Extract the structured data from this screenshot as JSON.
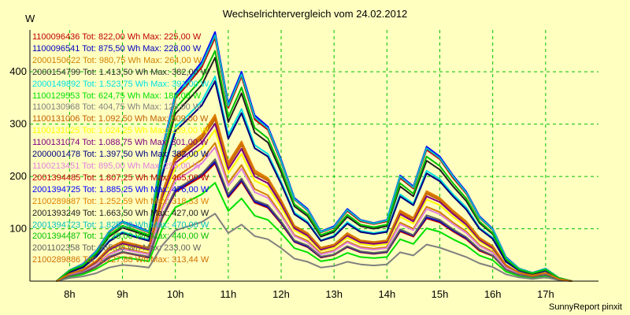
{
  "header": {
    "title": "Wechselrichtervergleich vom 24.02.2012",
    "unit": "W"
  },
  "footer": {
    "credit": "SunnyReport pinxit"
  },
  "chart_data": {
    "type": "line",
    "title": "Wechselrichtervergleich vom 24.02.2012",
    "ylabel": "W",
    "xlabel": "",
    "grid": true,
    "grid_style": "dashed",
    "grid_color": "#00c000",
    "background": "#ffffc0",
    "legend_position": "top-left",
    "xlim": [
      7.25,
      18.0
    ],
    "ylim": [
      0,
      480
    ],
    "x_ticks": [
      8,
      9,
      10,
      11,
      12,
      13,
      14,
      15,
      16,
      17
    ],
    "x_tick_labels": [
      "8h",
      "9h",
      "10h",
      "11h",
      "12h",
      "13h",
      "14h",
      "15h",
      "16h",
      "17h"
    ],
    "y_ticks": [
      100,
      200,
      300,
      400
    ],
    "y_tick_labels": [
      "100",
      "200",
      "300",
      "400"
    ],
    "x": [
      7.75,
      8.0,
      8.25,
      8.5,
      8.75,
      9.0,
      9.25,
      9.5,
      9.75,
      10.0,
      10.25,
      10.5,
      10.75,
      11.0,
      11.25,
      11.5,
      11.75,
      12.0,
      12.25,
      12.5,
      12.75,
      13.0,
      13.25,
      13.5,
      13.75,
      14.0,
      14.25,
      14.5,
      14.75,
      15.0,
      15.25,
      15.5,
      15.75,
      16.0,
      16.25,
      16.5,
      16.75,
      17.0,
      17.25,
      17.5
    ],
    "series": [
      {
        "name": "1100096436 Tot: 822,00 Wh Max: 225,00 W",
        "color": "#c00000",
        "values": [
          0,
          10,
          15,
          27,
          45,
          55,
          50,
          45,
          120,
          170,
          185,
          200,
          225,
          160,
          190,
          150,
          140,
          110,
          75,
          65,
          45,
          50,
          65,
          55,
          52,
          55,
          95,
          85,
          120,
          112,
          95,
          80,
          58,
          48,
          22,
          12,
          8,
          12,
          3,
          0
        ]
      },
      {
        "name": "1100096541 Tot: 875,50 Wh Max: 228,00 W",
        "color": "#0000c0",
        "values": [
          0,
          10,
          16,
          28,
          46,
          56,
          51,
          46,
          122,
          172,
          188,
          203,
          228,
          162,
          193,
          152,
          142,
          112,
          76,
          66,
          46,
          51,
          66,
          56,
          53,
          56,
          97,
          87,
          122,
          114,
          97,
          82,
          60,
          49,
          22,
          12,
          8,
          12,
          3,
          0
        ]
      },
      {
        "name": "2000150622 Tot: 980,75 Wh Max: 264,00 W",
        "color": "#d08000",
        "values": [
          0,
          12,
          18,
          32,
          52,
          64,
          58,
          53,
          140,
          198,
          215,
          232,
          264,
          188,
          222,
          176,
          164,
          128,
          88,
          77,
          53,
          59,
          76,
          65,
          62,
          65,
          112,
          100,
          142,
          132,
          112,
          95,
          69,
          56,
          26,
          14,
          9,
          14,
          4,
          0
        ]
      },
      {
        "name": "2000154799 Tot: 1.413,50 Wh Max: 382,00 W",
        "color": "#303030",
        "values": [
          0,
          17,
          26,
          46,
          76,
          92,
          84,
          77,
          202,
          287,
          311,
          336,
          382,
          272,
          321,
          254,
          238,
          186,
          128,
          111,
          77,
          85,
          110,
          94,
          90,
          94,
          162,
          145,
          206,
          191,
          162,
          137,
          100,
          81,
          37,
          20,
          13,
          20,
          5,
          0
        ]
      },
      {
        "name": "2000149892 Tot: 1.523,75 Wh Max: 391,00 W",
        "color": "#00e0e0",
        "values": [
          0,
          18,
          27,
          47,
          78,
          94,
          86,
          79,
          207,
          294,
          318,
          344,
          391,
          279,
          329,
          260,
          243,
          190,
          131,
          114,
          78,
          87,
          113,
          96,
          92,
          96,
          166,
          148,
          211,
          195,
          166,
          141,
          102,
          83,
          38,
          20,
          13,
          20,
          5,
          0
        ]
      },
      {
        "name": "1100129553 Tot: 624,75 Wh Max: 188,00 W",
        "color": "#00e000",
        "values": [
          0,
          8,
          13,
          23,
          38,
          46,
          42,
          38,
          100,
          141,
          153,
          166,
          188,
          134,
          158,
          125,
          117,
          92,
          63,
          55,
          38,
          42,
          54,
          46,
          44,
          46,
          80,
          71,
          101,
          94,
          80,
          68,
          49,
          40,
          18,
          10,
          6,
          10,
          3,
          0
        ]
      },
      {
        "name": "1100130968 Tot: 404,75 Wh Max: 129,00 W",
        "color": "#808080",
        "values": [
          0,
          6,
          9,
          15,
          26,
          31,
          29,
          26,
          68,
          97,
          105,
          113,
          129,
          92,
          108,
          86,
          80,
          63,
          43,
          37,
          26,
          29,
          37,
          32,
          30,
          32,
          55,
          49,
          70,
          64,
          55,
          46,
          34,
          27,
          13,
          7,
          4,
          7,
          2,
          0
        ]
      },
      {
        "name": "1100131006 Tot: 1.092,50 Wh Max: 309,00 W",
        "color": "#c06000",
        "values": [
          0,
          14,
          21,
          37,
          62,
          74,
          68,
          62,
          164,
          232,
          252,
          272,
          309,
          220,
          260,
          206,
          192,
          151,
          103,
          90,
          62,
          69,
          89,
          76,
          73,
          76,
          131,
          117,
          167,
          155,
          131,
          111,
          81,
          65,
          30,
          16,
          10,
          16,
          4,
          0
        ]
      },
      {
        "name": "1100131025 Tot: 1.024,25 Wh Max: 289,00 W",
        "color": "#ffff00",
        "values": [
          0,
          13,
          19,
          35,
          58,
          69,
          64,
          58,
          153,
          217,
          235,
          254,
          289,
          206,
          243,
          192,
          180,
          141,
          97,
          84,
          58,
          64,
          83,
          71,
          68,
          71,
          123,
          110,
          156,
          145,
          123,
          104,
          76,
          61,
          28,
          15,
          10,
          15,
          4,
          0
        ]
      },
      {
        "name": "1100131074 Tot: 1.088,75 Wh Max: 301,00 W",
        "color": "#800080",
        "values": [
          0,
          14,
          20,
          36,
          60,
          72,
          66,
          60,
          160,
          226,
          245,
          265,
          301,
          214,
          253,
          200,
          187,
          147,
          101,
          87,
          60,
          67,
          87,
          74,
          71,
          74,
          128,
          114,
          162,
          151,
          128,
          108,
          79,
          63,
          29,
          16,
          10,
          16,
          4,
          0
        ]
      },
      {
        "name": "2000001478 Tot: 1.397,50 Wh Max: 382,00 W",
        "color": "#000080",
        "values": [
          0,
          17,
          26,
          46,
          76,
          92,
          84,
          77,
          202,
          287,
          311,
          336,
          382,
          272,
          321,
          254,
          238,
          186,
          128,
          111,
          77,
          85,
          110,
          94,
          90,
          94,
          162,
          145,
          206,
          191,
          162,
          137,
          100,
          81,
          37,
          20,
          13,
          20,
          5,
          0
        ]
      },
      {
        "name": "1100213451 Tot: 895,00 Wh Max: 256,00 W",
        "color": "#e080e0",
        "values": [
          0,
          12,
          17,
          31,
          51,
          61,
          56,
          51,
          136,
          192,
          208,
          225,
          256,
          182,
          215,
          170,
          159,
          125,
          86,
          74,
          51,
          57,
          74,
          63,
          60,
          63,
          109,
          97,
          138,
          128,
          109,
          92,
          67,
          54,
          25,
          13,
          9,
          13,
          4,
          0
        ]
      },
      {
        "name": "2001394485 Tot: 1.807,25 Wh Max: 465,00 W",
        "color": "#c00000",
        "values": [
          0,
          21,
          32,
          56,
          93,
          112,
          102,
          93,
          246,
          349,
          378,
          409,
          465,
          331,
          391,
          309,
          289,
          227,
          156,
          135,
          93,
          102,
          134,
          114,
          109,
          114,
          197,
          177,
          251,
          233,
          197,
          167,
          121,
          98,
          45,
          24,
          16,
          24,
          6,
          0
        ]
      },
      {
        "name": "2001394725 Tot: 1.885,25 Wh Max: 476,00 W",
        "color": "#0000ff",
        "values": [
          0,
          21,
          33,
          57,
          95,
          114,
          105,
          95,
          252,
          357,
          387,
          419,
          476,
          339,
          400,
          317,
          295,
          232,
          159,
          138,
          95,
          105,
          138,
          117,
          111,
          117,
          202,
          181,
          257,
          238,
          202,
          171,
          124,
          100,
          46,
          24,
          16,
          24,
          6,
          0
        ]
      },
      {
        "name": "2100289887 Tot: 1.252,59 Wh Max: 318,33 W",
        "color": "#e08000",
        "values": [
          0,
          14,
          22,
          38,
          64,
          76,
          70,
          64,
          169,
          239,
          259,
          280,
          318,
          227,
          267,
          212,
          197,
          155,
          106,
          92,
          64,
          70,
          92,
          78,
          75,
          78,
          135,
          121,
          172,
          159,
          135,
          114,
          83,
          67,
          31,
          16,
          11,
          16,
          4,
          0
        ]
      },
      {
        "name": "2001393249 Tot: 1.663,50 Wh Max: 427,00 W",
        "color": "#202020",
        "values": [
          0,
          19,
          29,
          51,
          85,
          102,
          94,
          85,
          226,
          320,
          347,
          375,
          427,
          304,
          359,
          284,
          265,
          208,
          143,
          124,
          85,
          94,
          123,
          105,
          100,
          105,
          181,
          162,
          230,
          213,
          181,
          153,
          111,
          90,
          41,
          22,
          14,
          22,
          6,
          0
        ]
      },
      {
        "name": "2001394723 Tot: 1.825,50 Wh Max: 470,00 W",
        "color": "#00c0c0",
        "values": [
          0,
          21,
          32,
          56,
          94,
          113,
          103,
          94,
          249,
          353,
          382,
          414,
          470,
          335,
          395,
          313,
          292,
          229,
          157,
          136,
          94,
          103,
          136,
          116,
          110,
          116,
          200,
          179,
          254,
          235,
          200,
          169,
          122,
          99,
          45,
          24,
          16,
          24,
          6,
          0
        ]
      },
      {
        "name": "2001394487 Tot: 1.728,00 Wh Max: 440,00 W",
        "color": "#00c000",
        "values": [
          0,
          20,
          30,
          53,
          88,
          106,
          97,
          88,
          233,
          330,
          358,
          387,
          440,
          313,
          370,
          293,
          273,
          215,
          147,
          128,
          88,
          97,
          127,
          108,
          103,
          108,
          187,
          167,
          238,
          220,
          187,
          158,
          114,
          92,
          42,
          22,
          15,
          22,
          6,
          0
        ]
      },
      {
        "name": "2001102358 Tot: 865,00 Wh Max: 233,00 W",
        "color": "#606060",
        "values": [
          0,
          10,
          16,
          28,
          47,
          56,
          51,
          47,
          123,
          175,
          190,
          205,
          233,
          166,
          196,
          155,
          145,
          114,
          78,
          68,
          47,
          51,
          67,
          57,
          54,
          57,
          99,
          88,
          126,
          117,
          99,
          84,
          61,
          49,
          22,
          12,
          8,
          12,
          3,
          0
        ]
      },
      {
        "name": "2100289886 Tot: 1.227,88 Wh Max: 313,44 W",
        "color": "#d07000",
        "values": [
          0,
          14,
          21,
          38,
          63,
          75,
          69,
          63,
          166,
          235,
          255,
          276,
          313,
          223,
          263,
          208,
          194,
          153,
          105,
          91,
          63,
          69,
          90,
          77,
          74,
          77,
          133,
          119,
          169,
          157,
          133,
          112,
          82,
          66,
          30,
          16,
          10,
          16,
          4,
          0
        ]
      }
    ]
  }
}
